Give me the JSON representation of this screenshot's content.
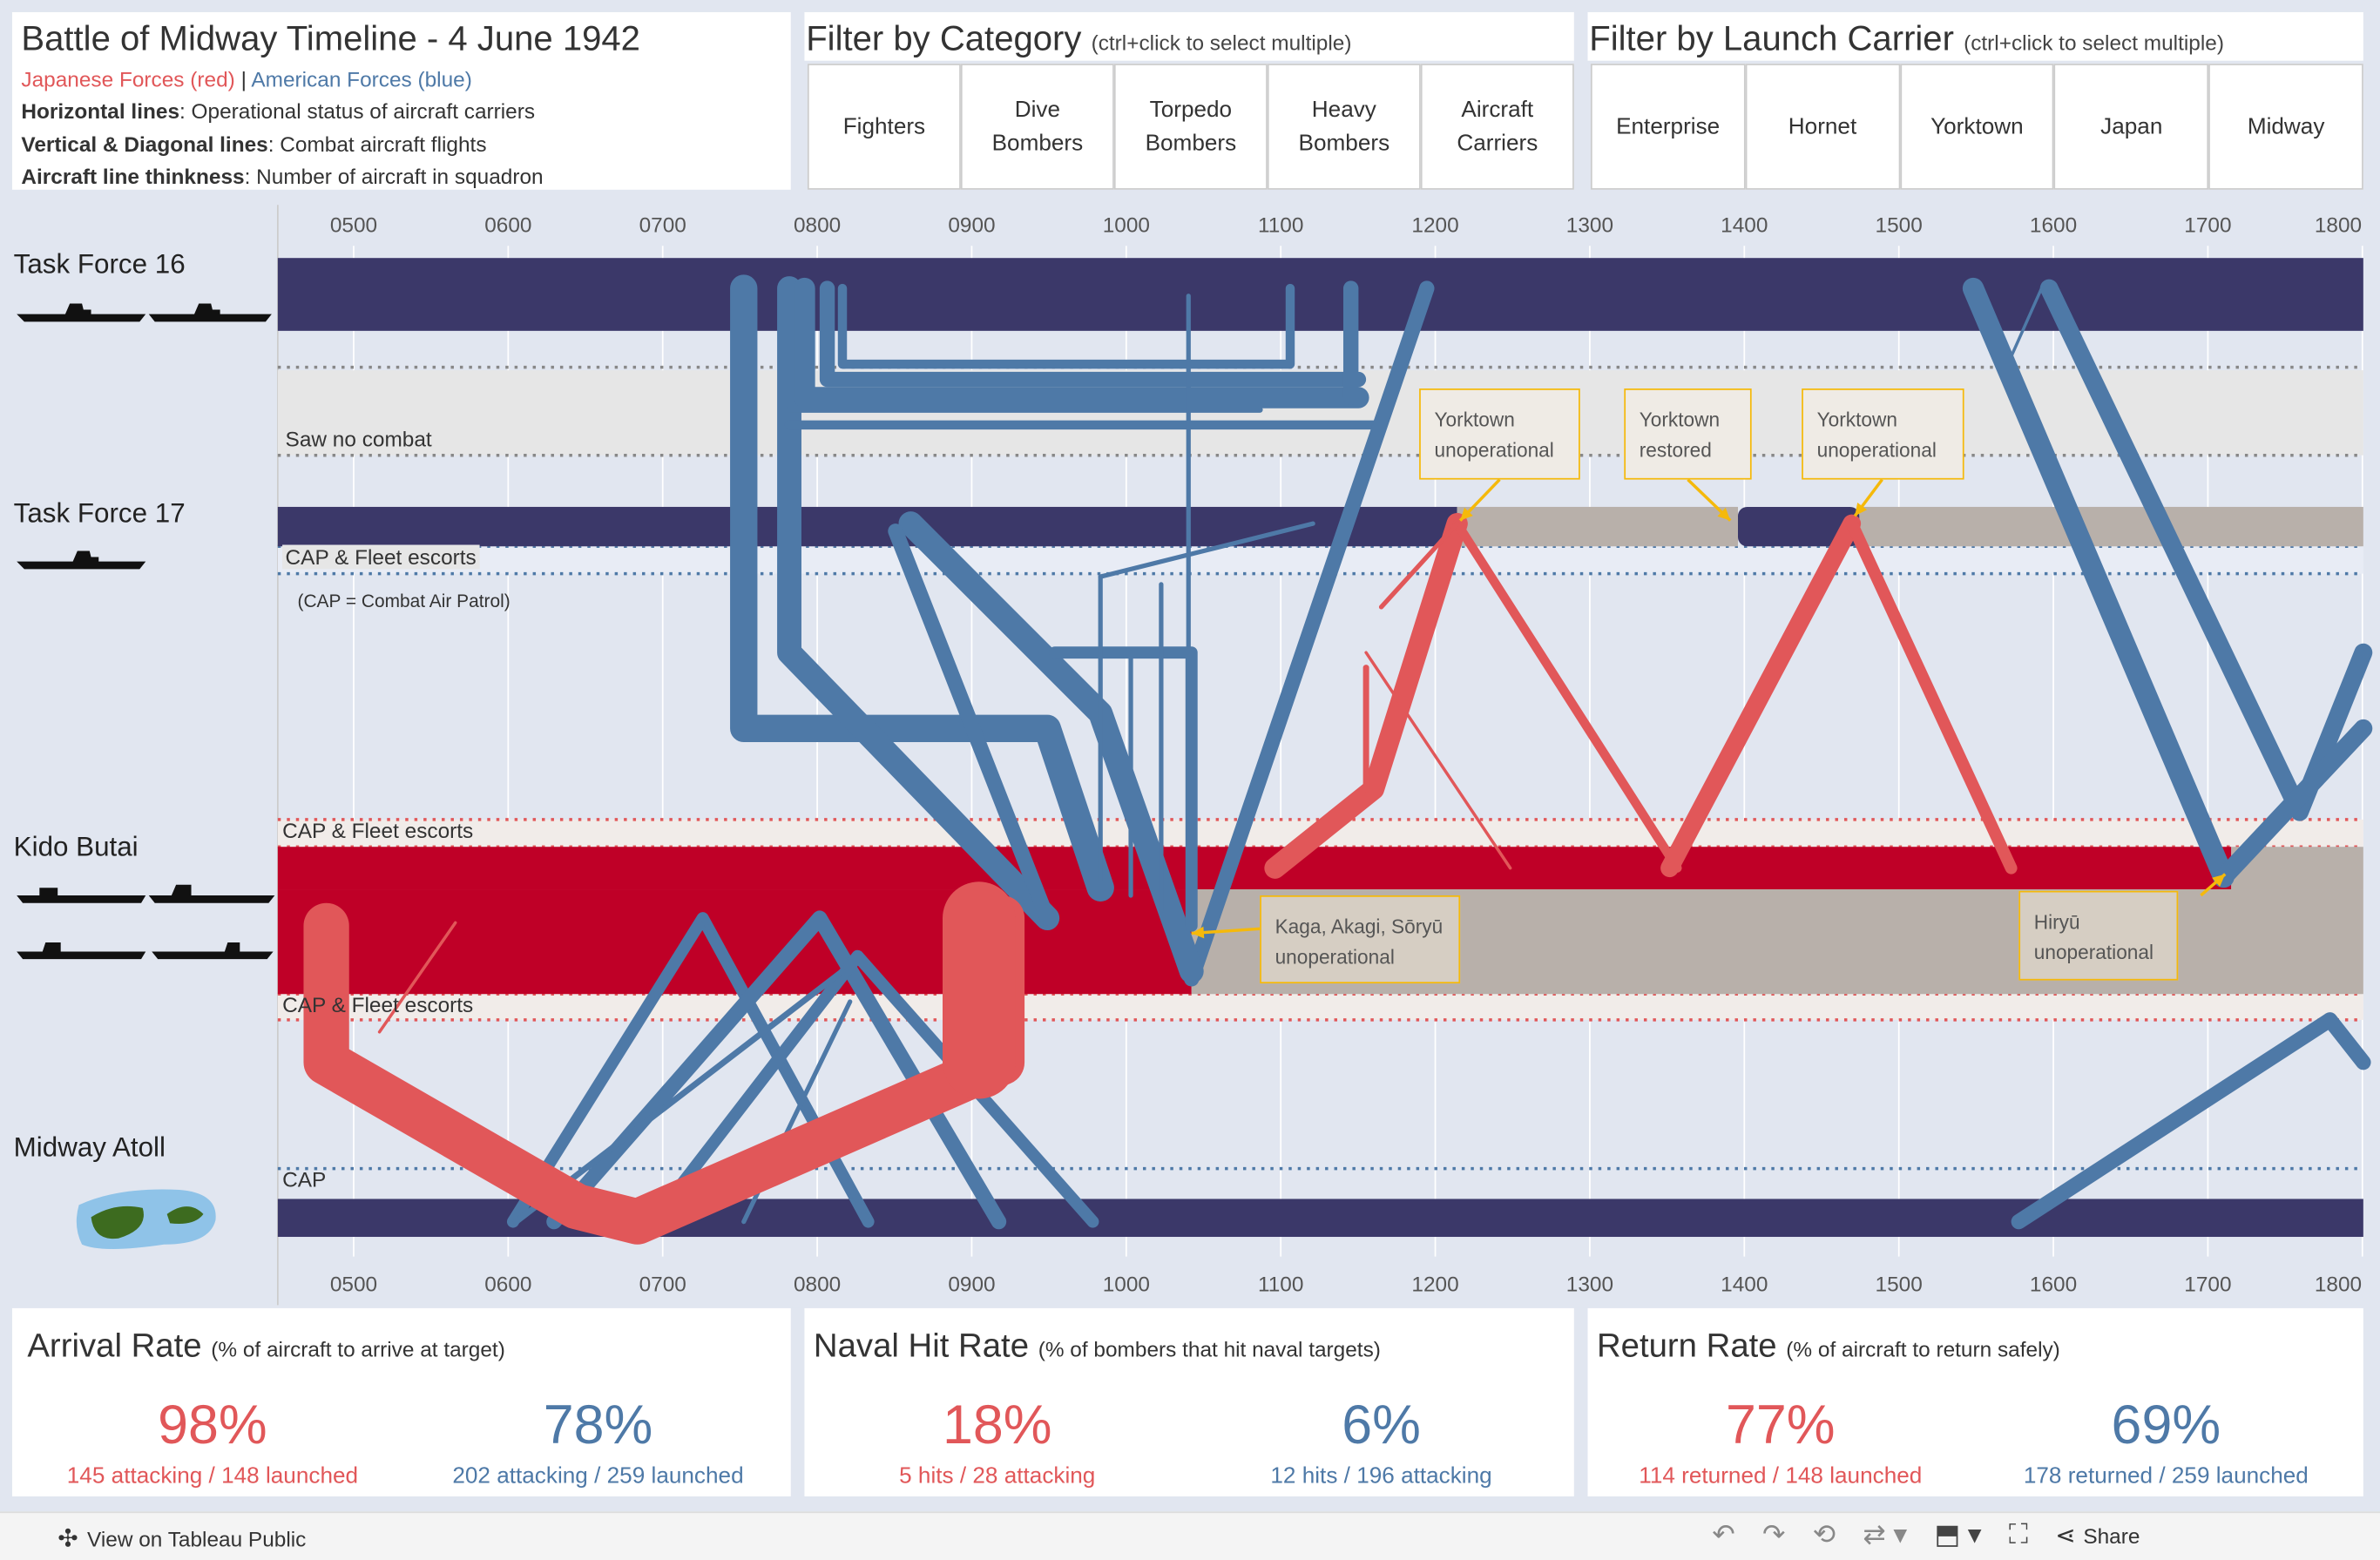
{
  "header": {
    "title": "Battle of Midway Timeline - 4 June 1942",
    "legend_japanese": "Japanese Forces (red)",
    "legend_sep": "|",
    "legend_american": "American Forces (blue)",
    "notes": [
      {
        "bold": "Horizontal lines",
        "text": ": Operational status of aircraft carriers"
      },
      {
        "bold": "Vertical & Diagonal lines",
        "text": ": Combat aircraft flights"
      },
      {
        "bold": "Aircraft line thinkness",
        "text": ": Number of aircraft in squadron"
      }
    ]
  },
  "filter_category": {
    "title": "Filter by Category",
    "hint": "(ctrl+click to select multiple)",
    "options": [
      "Fighters",
      "Dive Bombers",
      "Torpedo Bombers",
      "Heavy Bombers",
      "Aircraft Carriers"
    ]
  },
  "filter_carrier": {
    "title": "Filter by Launch Carrier",
    "hint": "(ctrl+click to select multiple)",
    "options": [
      "Enterprise",
      "Hornet",
      "Yorktown",
      "Japan",
      "Midway"
    ]
  },
  "axis": {
    "ticks": [
      "0500",
      "0600",
      "0700",
      "0800",
      "0900",
      "1000",
      "1100",
      "1200",
      "1300",
      "1400",
      "1500",
      "1600",
      "1700",
      "1800"
    ]
  },
  "lanes": {
    "tf16": "Task Force 16",
    "tf17": "Task Force 17",
    "kido": "Kido Butai",
    "midway": "Midway Atoll",
    "saw_no_combat": "Saw no combat",
    "cap_fleet_1": "CAP & Fleet escorts",
    "cap_note": "(CAP = Combat Air Patrol)",
    "cap_fleet_2": "CAP & Fleet escorts",
    "cap_fleet_3": "CAP & Fleet escorts",
    "cap": "CAP"
  },
  "annotations": {
    "yorktown_unop_1": [
      "Yorktown",
      "unoperational"
    ],
    "yorktown_restored": [
      "Yorktown",
      "restored"
    ],
    "yorktown_unop_2": [
      "Yorktown",
      "unoperational"
    ],
    "kaga": [
      "Kaga, Akagi, Sōryū",
      "unoperational"
    ],
    "hiryu": [
      "Hiryū",
      "unoperational"
    ]
  },
  "colors": {
    "japanese": "#e15759",
    "american": "#4e79a7",
    "carrier_active_us": "#3b3869",
    "carrier_active_jp": "#bf0027",
    "carrier_inactive": "#b8b0aa",
    "annotation_border": "#f5b90b"
  },
  "kpis": [
    {
      "title": "Arrival Rate",
      "subtitle": "(% of aircraft to arrive at target)",
      "jp": {
        "pct": "98%",
        "a": "145",
        "a_label": "attacking",
        "b": "148",
        "b_label": "launched"
      },
      "us": {
        "pct": "78%",
        "a": "202",
        "a_label": "attacking",
        "b": "259",
        "b_label": "launched"
      }
    },
    {
      "title": "Naval Hit Rate",
      "subtitle": "(% of bombers that hit naval targets)",
      "jp": {
        "pct": "18%",
        "a": "5",
        "a_label": "hits",
        "b": "28",
        "b_label": "attacking"
      },
      "us": {
        "pct": "6%",
        "a": "12",
        "a_label": "hits",
        "b": "196",
        "b_label": "attacking"
      }
    },
    {
      "title": "Return Rate",
      "subtitle": "(% of aircraft to return safely)",
      "jp": {
        "pct": "77%",
        "a": "114",
        "a_label": "returned",
        "b": "148",
        "b_label": "launched"
      },
      "us": {
        "pct": "69%",
        "a": "178",
        "a_label": "returned",
        "b": "259",
        "b_label": "launched"
      }
    }
  ],
  "footer": {
    "view_label": "View on Tableau Public",
    "share_label": "Share"
  }
}
